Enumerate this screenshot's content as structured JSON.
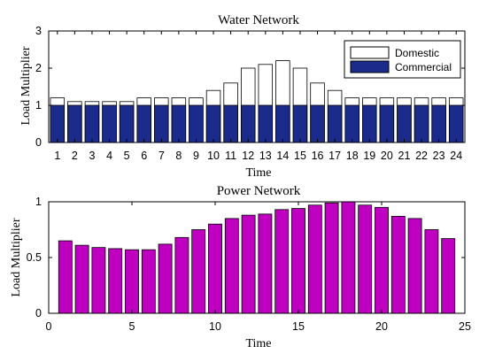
{
  "chart_data": [
    {
      "type": "bar",
      "stacked": true,
      "title": "Water Network",
      "xlabel": "Time",
      "ylabel": "Load Multiplier",
      "categories": [
        "1",
        "2",
        "3",
        "4",
        "5",
        "6",
        "7",
        "8",
        "9",
        "10",
        "11",
        "12",
        "13",
        "14",
        "15",
        "16",
        "17",
        "18",
        "19",
        "20",
        "21",
        "22",
        "23",
        "24"
      ],
      "ylim": [
        0,
        3
      ],
      "yticks": [
        "0",
        "1",
        "2",
        "3"
      ],
      "legend_position": "top-right",
      "series": [
        {
          "name": "Domestic",
          "color": "#ffffff",
          "values": [
            1.2,
            1.1,
            1.1,
            1.1,
            1.1,
            1.2,
            1.2,
            1.2,
            1.2,
            1.4,
            1.6,
            2.0,
            2.1,
            2.2,
            2.0,
            1.6,
            1.4,
            1.2,
            1.2,
            1.2,
            1.2,
            1.2,
            1.2,
            1.2
          ]
        },
        {
          "name": "Commercial",
          "color": "#1a2b8c",
          "values": [
            1,
            1,
            1,
            1,
            1,
            1,
            1,
            1,
            1,
            1,
            1,
            1,
            1,
            1,
            1,
            1,
            1,
            1,
            1,
            1,
            1,
            1,
            1,
            1
          ]
        }
      ]
    },
    {
      "type": "bar",
      "title": "Power Network",
      "xlabel": "Time",
      "ylabel": "Load Multiplier",
      "x": [
        1,
        2,
        3,
        4,
        5,
        6,
        7,
        8,
        9,
        10,
        11,
        12,
        13,
        14,
        15,
        16,
        17,
        18,
        19,
        20,
        21,
        22,
        23,
        24
      ],
      "values": [
        0.65,
        0.61,
        0.59,
        0.58,
        0.57,
        0.57,
        0.62,
        0.68,
        0.75,
        0.8,
        0.85,
        0.88,
        0.89,
        0.93,
        0.94,
        0.97,
        0.99,
        1.0,
        0.97,
        0.95,
        0.87,
        0.85,
        0.75,
        0.67
      ],
      "color": "#c000c0",
      "xlim": [
        0,
        25
      ],
      "ylim": [
        0,
        1
      ],
      "xticks": [
        "0",
        "5",
        "10",
        "15",
        "20",
        "25"
      ],
      "yticks": [
        "0",
        "0.5",
        "1"
      ]
    }
  ]
}
